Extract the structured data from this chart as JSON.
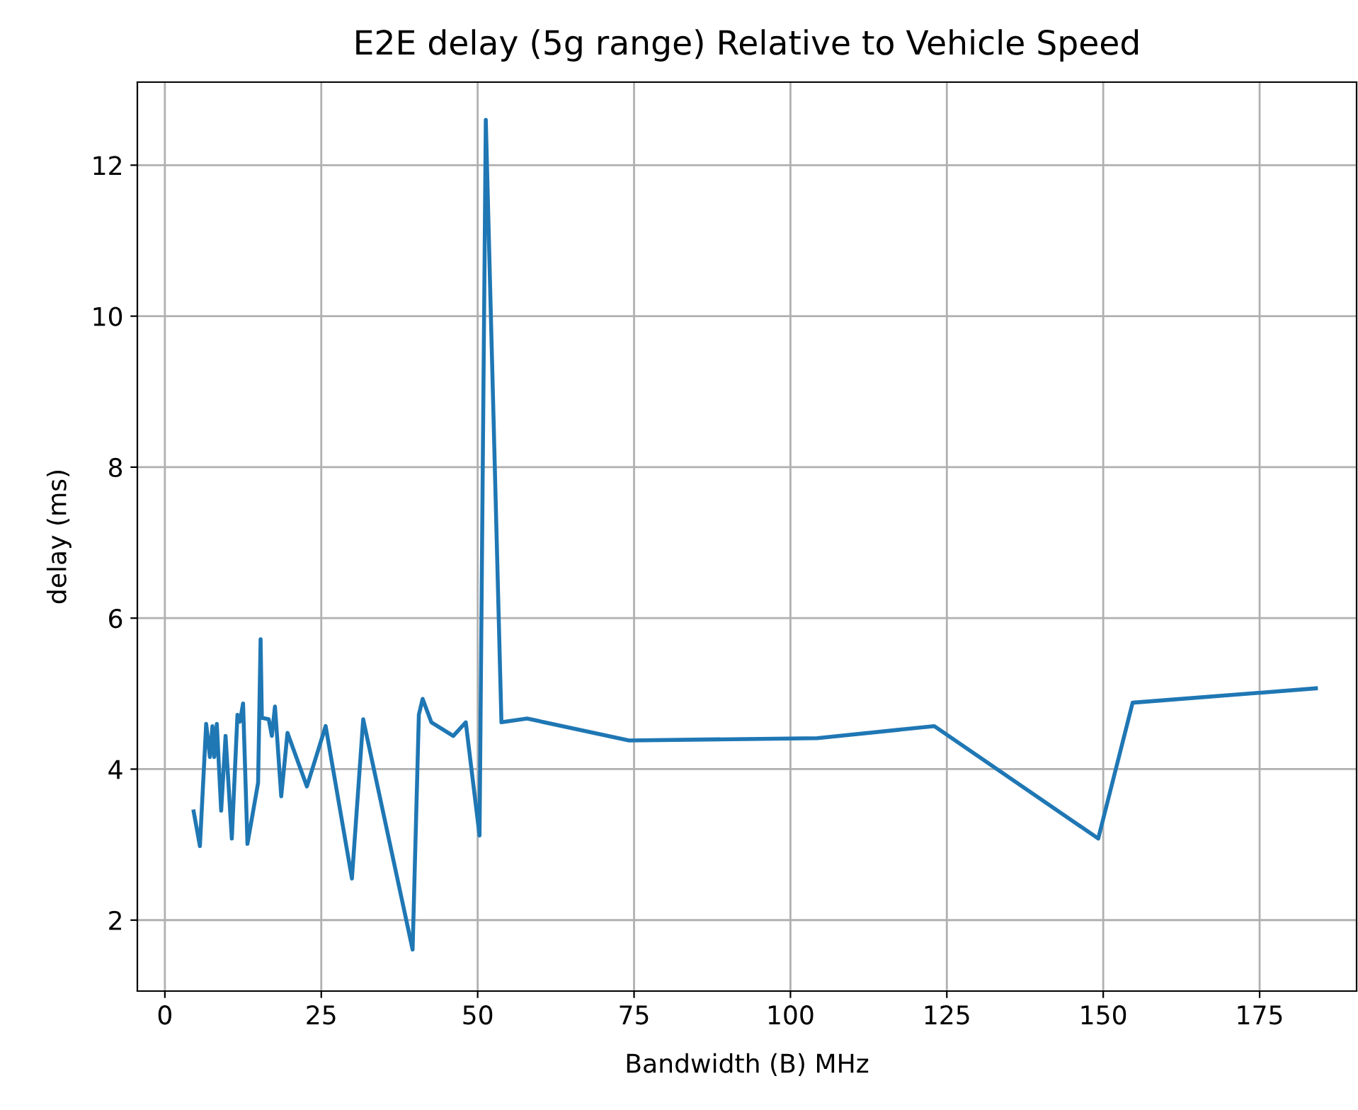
{
  "chart_data": {
    "type": "line",
    "title": "E2E delay (5g range) Relative to Vehicle Speed",
    "xlabel": "Bandwidth (B) MHz",
    "ylabel": "delay (ms)",
    "x": [
      4.6,
      5.6,
      6.6,
      7.2,
      7.6,
      7.9,
      8.3,
      9.0,
      9.7,
      10.7,
      11.6,
      12.0,
      12.5,
      13.2,
      14.9,
      15.3,
      15.5,
      16.6,
      17.1,
      17.6,
      18.6,
      19.6,
      22.7,
      25.7,
      29.9,
      31.7,
      39.6,
      40.6,
      41.2,
      42.6,
      46.1,
      48.1,
      50.3,
      51.3,
      53.8,
      57.9,
      74.2,
      104.3,
      123,
      149.2,
      154.7,
      184.0
    ],
    "series": [
      {
        "color": "#1f77b4",
        "values": [
          3.44,
          2.98,
          4.6,
          4.16,
          4.57,
          4.16,
          4.6,
          3.45,
          4.44,
          3.08,
          4.72,
          4.63,
          4.87,
          3.01,
          3.82,
          5.72,
          4.68,
          4.66,
          4.44,
          4.83,
          3.64,
          4.48,
          3.77,
          4.57,
          2.55,
          4.66,
          1.61,
          4.72,
          4.93,
          4.62,
          4.44,
          4.62,
          3.12,
          12.6,
          4.62,
          4.67,
          4.38,
          4.41,
          4.57,
          3.08,
          4.88,
          5.07
        ]
      }
    ],
    "xlim": [
      -4.4,
      190.5
    ],
    "ylim": [
      1.06,
      13.1
    ],
    "xticks": [
      0,
      25,
      50,
      75,
      100,
      125,
      150,
      175
    ],
    "yticks": [
      2,
      4,
      6,
      8,
      10,
      12
    ],
    "grid": true,
    "line_style": "solid",
    "marker": "none"
  }
}
